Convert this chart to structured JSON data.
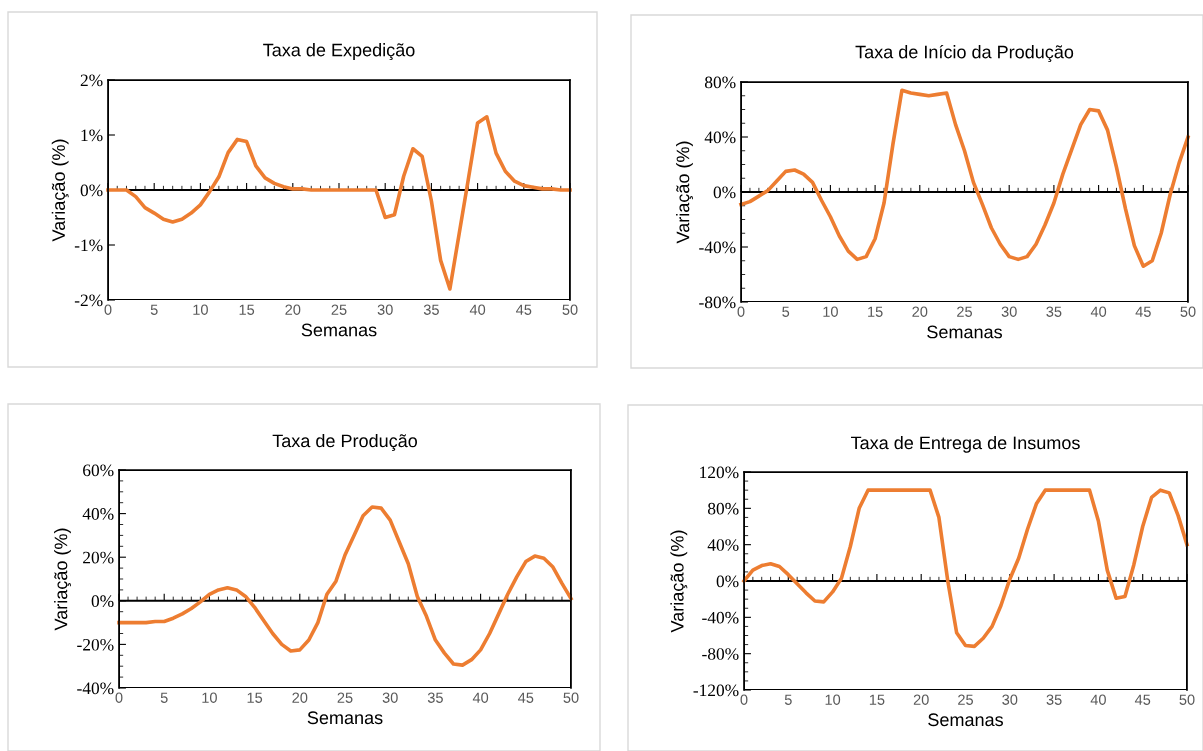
{
  "chart_data": [
    {
      "type": "line",
      "title": "Taxa de Expedição",
      "xlabel": "Semanas",
      "ylabel": "Variação (%)",
      "xlim": [
        0,
        50
      ],
      "xticks": [
        0,
        5,
        10,
        15,
        20,
        25,
        30,
        35,
        40,
        45,
        50
      ],
      "ylim": [
        -2,
        2
      ],
      "yticks": [
        {
          "value": -2,
          "label": "-2%"
        },
        {
          "value": -1,
          "label": "-1%"
        },
        {
          "value": 0,
          "label": "0%"
        },
        {
          "value": 1,
          "label": "1%"
        },
        {
          "value": 2,
          "label": "2%"
        }
      ],
      "grid": false,
      "ref_lines": [
        {
          "axis": "y",
          "value": 0,
          "color": "#000000",
          "line_style": "solid"
        }
      ],
      "legend": false,
      "marker": "none",
      "line_style": "solid",
      "series": [
        {
          "color": "#ed7d31",
          "x": [
            0,
            1,
            2,
            3,
            4,
            5,
            6,
            7,
            8,
            9,
            10,
            11,
            12,
            13,
            14,
            15,
            16,
            17,
            18,
            19,
            20,
            21,
            22,
            23,
            24,
            25,
            26,
            27,
            28,
            29,
            30,
            31,
            32,
            33,
            34,
            35,
            36,
            37,
            38,
            39,
            40,
            41,
            42,
            43,
            44,
            45,
            46,
            47,
            48,
            49,
            50
          ],
          "values": [
            0,
            0,
            0,
            -0.12,
            -0.32,
            -0.42,
            -0.53,
            -0.58,
            -0.53,
            -0.42,
            -0.27,
            -0.03,
            0.24,
            0.68,
            0.92,
            0.88,
            0.44,
            0.22,
            0.12,
            0.06,
            0.02,
            0.02,
            0,
            0,
            0,
            0,
            0,
            0,
            0,
            0,
            -0.5,
            -0.45,
            0.25,
            0.75,
            0.61,
            -0.2,
            -1.28,
            -1.8,
            -0.8,
            0.2,
            1.22,
            1.33,
            0.67,
            0.34,
            0.16,
            0.08,
            0.05,
            0.02,
            0.02,
            0,
            0
          ]
        }
      ]
    },
    {
      "type": "line",
      "title": "Taxa de Início da Produção",
      "xlabel": "Semanas",
      "ylabel": "Variação (%)",
      "xlim": [
        0,
        50
      ],
      "xticks": [
        0,
        5,
        10,
        15,
        20,
        25,
        30,
        35,
        40,
        45,
        50
      ],
      "ylim": [
        -80,
        80
      ],
      "yticks": [
        {
          "value": -80,
          "label": "-80%"
        },
        {
          "value": -40,
          "label": "-40%"
        },
        {
          "value": 0,
          "label": "0%"
        },
        {
          "value": 40,
          "label": "40%"
        },
        {
          "value": 80,
          "label": "80%"
        }
      ],
      "grid": false,
      "ref_lines": [
        {
          "axis": "y",
          "value": 0,
          "color": "#000000",
          "line_style": "solid"
        }
      ],
      "legend": false,
      "marker": "none",
      "line_style": "solid",
      "series": [
        {
          "color": "#ed7d31",
          "x": [
            0,
            1,
            2,
            3,
            4,
            5,
            6,
            7,
            8,
            9,
            10,
            11,
            12,
            13,
            14,
            15,
            16,
            17,
            18,
            19,
            20,
            21,
            22,
            23,
            24,
            25,
            26,
            27,
            28,
            29,
            30,
            31,
            32,
            33,
            34,
            35,
            36,
            37,
            38,
            39,
            40,
            41,
            42,
            43,
            44,
            45,
            46,
            47,
            48,
            49,
            50
          ],
          "values": [
            -9,
            -7,
            -3,
            1,
            8,
            15,
            16,
            13,
            7,
            -6,
            -18,
            -32,
            -43,
            -49,
            -47,
            -34,
            -8,
            35,
            74,
            72,
            71,
            70,
            71,
            72,
            49,
            30,
            7,
            -9,
            -26,
            -38,
            -47,
            -49,
            -47,
            -38,
            -24,
            -8,
            13,
            31,
            49,
            60,
            59,
            45,
            18,
            -12,
            -39,
            -54,
            -50,
            -30,
            -2,
            21,
            40
          ]
        }
      ]
    },
    {
      "type": "line",
      "title": "Taxa de Produção",
      "xlabel": "Semanas",
      "ylabel": "Variação (%)",
      "xlim": [
        0,
        50
      ],
      "xticks": [
        0,
        5,
        10,
        15,
        20,
        25,
        30,
        35,
        40,
        45,
        50
      ],
      "ylim": [
        -40,
        60
      ],
      "yticks": [
        {
          "value": -40,
          "label": "-40%"
        },
        {
          "value": -20,
          "label": "-20%"
        },
        {
          "value": 0,
          "label": "0%"
        },
        {
          "value": 20,
          "label": "20%"
        },
        {
          "value": 40,
          "label": "40%"
        },
        {
          "value": 60,
          "label": "60%"
        }
      ],
      "grid": false,
      "ref_lines": [
        {
          "axis": "y",
          "value": 0,
          "color": "#000000",
          "line_style": "solid"
        }
      ],
      "legend": false,
      "marker": "none",
      "line_style": "solid",
      "series": [
        {
          "color": "#ed7d31",
          "x": [
            0,
            1,
            2,
            3,
            4,
            5,
            6,
            7,
            8,
            9,
            10,
            11,
            12,
            13,
            14,
            15,
            16,
            17,
            18,
            19,
            20,
            21,
            22,
            23,
            24,
            25,
            26,
            27,
            28,
            29,
            30,
            31,
            32,
            33,
            34,
            35,
            36,
            37,
            38,
            39,
            40,
            41,
            42,
            43,
            44,
            45,
            46,
            47,
            48,
            49,
            50
          ],
          "values": [
            -10,
            -10,
            -10,
            -10,
            -9.5,
            -9.5,
            -8,
            -6,
            -3.5,
            -0.5,
            3,
            5,
            6,
            5,
            2,
            -3,
            -9,
            -15,
            -20,
            -23,
            -22.5,
            -18,
            -10,
            3,
            9,
            21,
            30,
            39,
            43,
            42.5,
            37,
            27,
            17,
            2,
            -7,
            -18,
            -24,
            -29,
            -29.5,
            -27,
            -22.5,
            -15,
            -6,
            3,
            11,
            18,
            20.5,
            19.5,
            15.5,
            8,
            1
          ]
        }
      ]
    },
    {
      "type": "line",
      "title": "Taxa de Entrega de Insumos",
      "xlabel": "Semanas",
      "ylabel": "Variação (%)",
      "xlim": [
        0,
        50
      ],
      "xticks": [
        0,
        5,
        10,
        15,
        20,
        25,
        30,
        35,
        40,
        45,
        50
      ],
      "ylim": [
        -120,
        120
      ],
      "yticks": [
        {
          "value": -120,
          "label": "-120%"
        },
        {
          "value": -80,
          "label": "-80%"
        },
        {
          "value": -40,
          "label": "-40%"
        },
        {
          "value": 0,
          "label": "0%"
        },
        {
          "value": 40,
          "label": "40%"
        },
        {
          "value": 80,
          "label": "80%"
        },
        {
          "value": 120,
          "label": "120%"
        }
      ],
      "grid": false,
      "ref_lines": [
        {
          "axis": "y",
          "value": 0,
          "color": "#000000",
          "line_style": "solid"
        }
      ],
      "legend": false,
      "marker": "none",
      "line_style": "solid",
      "series": [
        {
          "color": "#ed7d31",
          "x": [
            0,
            1,
            2,
            3,
            4,
            5,
            6,
            7,
            8,
            9,
            10,
            11,
            12,
            13,
            14,
            15,
            16,
            17,
            18,
            19,
            20,
            21,
            22,
            23,
            24,
            25,
            26,
            27,
            28,
            29,
            30,
            31,
            32,
            33,
            34,
            35,
            36,
            37,
            38,
            39,
            40,
            41,
            42,
            43,
            44,
            45,
            46,
            47,
            48,
            49,
            50
          ],
          "values": [
            0,
            12,
            17,
            19,
            16,
            7,
            -3,
            -13,
            -22,
            -23,
            -12,
            3,
            38,
            80,
            100,
            100,
            100,
            100,
            100,
            100,
            100,
            100,
            70,
            0,
            -57,
            -71,
            -72,
            -63,
            -50,
            -27,
            2,
            25,
            57,
            85,
            100,
            100,
            100,
            100,
            100,
            100,
            66,
            12,
            -19,
            -17,
            18,
            60,
            92,
            100,
            97,
            72,
            40
          ]
        }
      ]
    }
  ]
}
